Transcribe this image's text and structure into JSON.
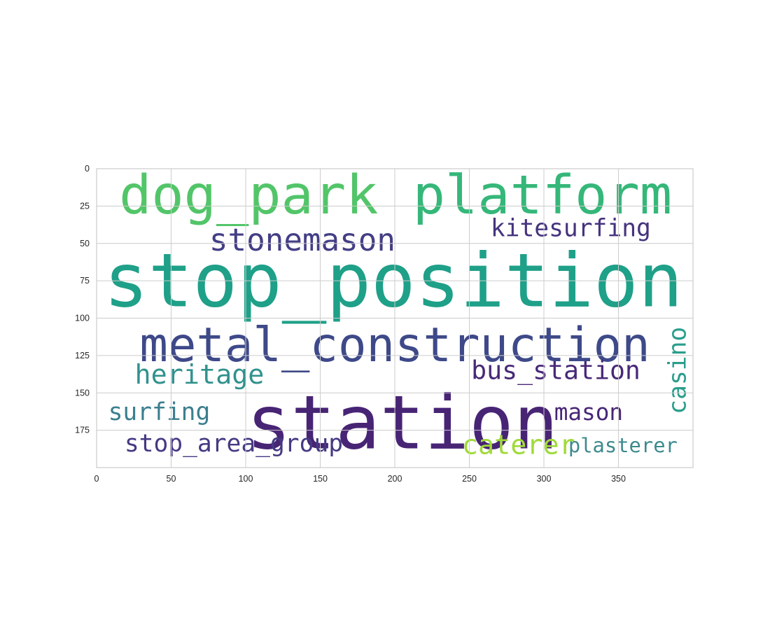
{
  "chart_data": {
    "type": "wordcloud",
    "title": "",
    "xlabel": "",
    "ylabel": "",
    "xlim": [
      0,
      400
    ],
    "ylim": [
      200,
      0
    ],
    "x_ticks": [
      0,
      50,
      100,
      150,
      200,
      250,
      300,
      350
    ],
    "y_ticks": [
      0,
      25,
      50,
      75,
      100,
      125,
      150,
      175
    ],
    "grid": true,
    "background_color": "#ffffff",
    "grid_color": "#cccccc",
    "words": [
      {
        "text": "dog_park",
        "x": 102,
        "y": 18,
        "size": 40,
        "color": "#52c569",
        "vertical": false
      },
      {
        "text": "platform",
        "x": 299,
        "y": 18,
        "size": 40,
        "color": "#35b779",
        "vertical": false
      },
      {
        "text": "kitesurfing",
        "x": 318,
        "y": 40,
        "size": 18,
        "color": "#46337e",
        "vertical": false
      },
      {
        "text": "stonemason",
        "x": 138,
        "y": 48,
        "size": 23,
        "color": "#433e85",
        "vertical": false
      },
      {
        "text": "stop_position",
        "x": 199,
        "y": 75,
        "size": 55,
        "color": "#1fa088",
        "vertical": false
      },
      {
        "text": "metal_construction",
        "x": 200,
        "y": 118,
        "size": 35,
        "color": "#3e4989",
        "vertical": false
      },
      {
        "text": "casino",
        "x": 390,
        "y": 135,
        "size": 18,
        "color": "#2a9e8c",
        "vertical": true
      },
      {
        "text": "heritage",
        "x": 69,
        "y": 138,
        "size": 20,
        "color": "#31928d",
        "vertical": false
      },
      {
        "text": "bus_station",
        "x": 308,
        "y": 135,
        "size": 19,
        "color": "#482877",
        "vertical": false
      },
      {
        "text": "station",
        "x": 205,
        "y": 170,
        "size": 55,
        "color": "#482475",
        "vertical": false
      },
      {
        "text": "surfing",
        "x": 42,
        "y": 163,
        "size": 18,
        "color": "#3b7f8e",
        "vertical": false
      },
      {
        "text": "mason",
        "x": 330,
        "y": 163,
        "size": 17,
        "color": "#482677",
        "vertical": false
      },
      {
        "text": "stop_area_group",
        "x": 92,
        "y": 184,
        "size": 18,
        "color": "#443a83",
        "vertical": false
      },
      {
        "text": "caterer",
        "x": 283,
        "y": 185,
        "size": 20,
        "color": "#a0da39",
        "vertical": false
      },
      {
        "text": "plasterer",
        "x": 353,
        "y": 185,
        "size": 15,
        "color": "#3d8a8d",
        "vertical": false
      }
    ]
  }
}
